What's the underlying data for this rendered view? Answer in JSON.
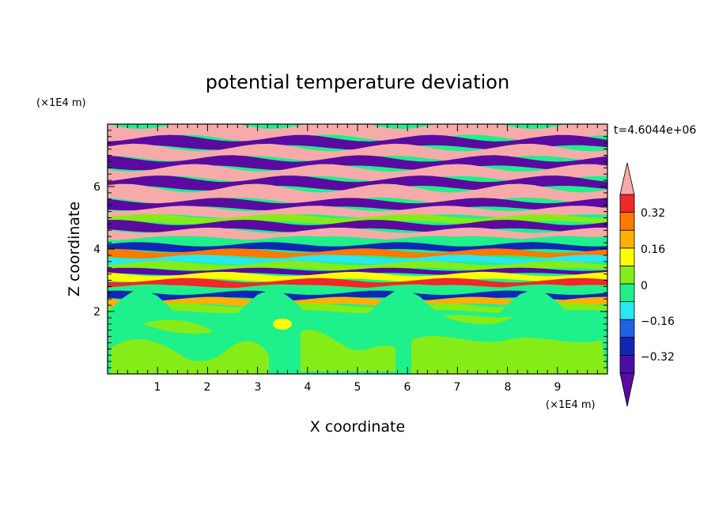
{
  "chart_data": {
    "type": "heatmap",
    "title": "potential temperature deviation",
    "xlabel": "X coordinate",
    "ylabel": "Z coordinate",
    "x_unit": "(×1E4 m)",
    "y_unit": "(×1E4 m)",
    "time_label": "t=4.6044e+06",
    "xlim": [
      0,
      10
    ],
    "ylim": [
      0,
      8
    ],
    "x_ticks": [
      "1",
      "2",
      "3",
      "4",
      "5",
      "6",
      "7",
      "8",
      "9"
    ],
    "y_ticks": [
      "2",
      "4",
      "6"
    ],
    "colorbar": {
      "tick_labels": [
        "0.32",
        "0.16",
        "0",
        "−0.16",
        "−0.32"
      ],
      "levels": [
        -0.4,
        -0.32,
        -0.24,
        -0.16,
        -0.08,
        0,
        0.08,
        0.16,
        0.24,
        0.32,
        0.4
      ],
      "colors": [
        "#5a0aa0",
        "#4b0fa8",
        "#1226b4",
        "#1f62e6",
        "#28e8f0",
        "#1ef08c",
        "#86ec18",
        "#ffff00",
        "#ffb000",
        "#ff7800",
        "#f02828",
        "#f7aaaa"
      ]
    },
    "layers": [
      {
        "z_top": 8.0,
        "z_bottom": 7.55,
        "color": "#f7aaaa"
      },
      {
        "z_top": 7.55,
        "z_bottom": 7.25,
        "color": "#5a0aa0"
      },
      {
        "z_top": 7.25,
        "z_bottom": 6.9,
        "color": "#f7aaaa"
      },
      {
        "z_top": 6.9,
        "z_bottom": 6.6,
        "color": "#5a0aa0"
      },
      {
        "z_top": 6.6,
        "z_bottom": 6.25,
        "color": "#f7aaaa"
      },
      {
        "z_top": 6.25,
        "z_bottom": 5.95,
        "color": "#5a0aa0"
      },
      {
        "z_top": 5.95,
        "z_bottom": 5.55,
        "color": "#f7aaaa"
      },
      {
        "z_top": 5.55,
        "z_bottom": 5.3,
        "color": "#5a0aa0"
      },
      {
        "z_top": 5.3,
        "z_bottom": 5.05,
        "color": "#f7aaaa"
      },
      {
        "z_top": 5.05,
        "z_bottom": 4.85,
        "color": "#86ec18"
      },
      {
        "z_top": 4.85,
        "z_bottom": 4.6,
        "color": "#5a0aa0"
      },
      {
        "z_top": 4.6,
        "z_bottom": 4.35,
        "color": "#f7aaaa"
      },
      {
        "z_top": 4.35,
        "z_bottom": 4.15,
        "color": "#1ef08c"
      },
      {
        "z_top": 4.15,
        "z_bottom": 3.95,
        "color": "#1226b4"
      },
      {
        "z_top": 3.95,
        "z_bottom": 3.75,
        "color": "#ff7800"
      },
      {
        "z_top": 3.75,
        "z_bottom": 3.55,
        "color": "#28e8f0"
      },
      {
        "z_top": 3.55,
        "z_bottom": 3.35,
        "color": "#86ec18"
      },
      {
        "z_top": 3.35,
        "z_bottom": 3.2,
        "color": "#5a0aa0"
      },
      {
        "z_top": 3.2,
        "z_bottom": 3.0,
        "color": "#ffff00"
      },
      {
        "z_top": 3.0,
        "z_bottom": 2.8,
        "color": "#f02828"
      },
      {
        "z_top": 2.8,
        "z_bottom": 2.6,
        "color": "#1ef08c"
      },
      {
        "z_top": 2.6,
        "z_bottom": 2.4,
        "color": "#1226b4"
      },
      {
        "z_top": 2.4,
        "z_bottom": 2.2,
        "color": "#ffb000"
      },
      {
        "z_top": 2.2,
        "z_bottom": 2.0,
        "color": "#86ec18"
      },
      {
        "z_top": 2.0,
        "z_bottom": 0.0,
        "color": "#1ef08c"
      }
    ]
  }
}
